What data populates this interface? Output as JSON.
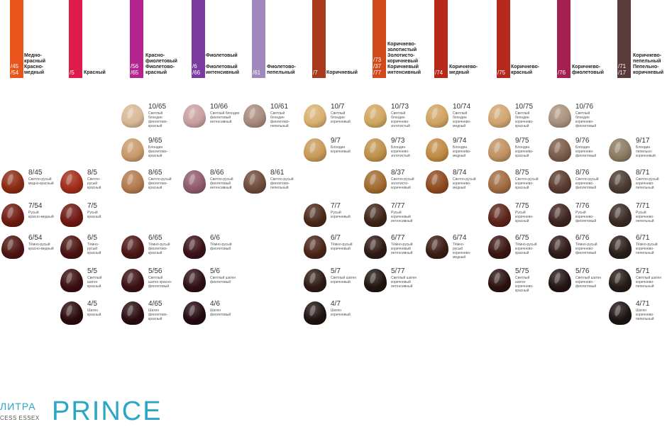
{
  "columns": [
    {
      "code": "/45\n/54",
      "label": "Медно-\nкрасный\nКрасно-\nмедный",
      "color": "#e8541a"
    },
    {
      "code": "/5",
      "label": "Красный",
      "color": "#e01a4a"
    },
    {
      "code": "/56\n/65",
      "label": "Красно-\nфиолетовый\nФиолетово-\nкрасный",
      "color": "#b3248e"
    },
    {
      "code": "/6\n/66",
      "label": "Фиолетовый\n\nФиолетовый\nинтенсивный",
      "color": "#7a3aa0"
    },
    {
      "code": "/61",
      "label": "Фиолетово-\nпепельный",
      "color": "#a088bd"
    },
    {
      "code": "/7",
      "label": "Коричневый",
      "color": "#a8391a"
    },
    {
      "code": "/73\n/37\n/77",
      "label": "Коричнево-\nзолотистый\nЗолотисто-\nкоричневый\nКоричневый\nинтенсивный",
      "color": "#d24a1c"
    },
    {
      "code": "/74",
      "label": "Коричнево-\nмедный",
      "color": "#b82818"
    },
    {
      "code": "/75",
      "label": "Коричнево-\nкрасный",
      "color": "#b5291c"
    },
    {
      "code": "/76",
      "label": "Коричнево-\nфиолетовый",
      "color": "#a52050"
    },
    {
      "code": "/71\n/17",
      "label": "Коричнево-\nпепельный\nПепельно-\nкоричневый",
      "color": "#5a3a3a"
    }
  ],
  "shades": [
    {
      "code": "8/45",
      "name": "Светло-русый\nмедно-красный",
      "color": "#8a2a12"
    },
    {
      "code": "7/54",
      "name": "Русый\nкрасно-медный",
      "color": "#6e1a10"
    },
    {
      "code": "6/54",
      "name": "Тёмно-русый\nкрасно-медный",
      "color": "#4e1410"
    },
    {
      "code": "8/5",
      "name": "Светло-\nрусый\nкрасный",
      "color": "#a02c18"
    },
    {
      "code": "7/5",
      "name": "Русый\nкрасный",
      "color": "#6e1812"
    },
    {
      "code": "6/5",
      "name": "Тёмно-\nрусый\nкрасный",
      "color": "#4a1210"
    },
    {
      "code": "5/5",
      "name": "Светлый\nшатен\nкрасный",
      "color": "#3a0e10"
    },
    {
      "code": "4/5",
      "name": "Шатен\nкрасный",
      "color": "#2a0a0c"
    },
    {
      "code": "10/65",
      "name": "Светлый\nблондин\nфиолетово-\nкрасный",
      "color": "#d8b896"
    },
    {
      "code": "9/65",
      "name": "Блондин\nфиолетово-\nкрасный",
      "color": "#c89a6a"
    },
    {
      "code": "8/65",
      "name": "Светло-русый\nфиолетово-\nкрасный",
      "color": "#b07a4e"
    },
    {
      "code": "6/65",
      "name": "Тёмно-русый\nфиолетово-\nкрасный",
      "color": "#4a1614"
    },
    {
      "code": "5/56",
      "name": "Светлый\nшатен красно-\nфиолетовый",
      "color": "#3a1014"
    },
    {
      "code": "4/65",
      "name": "Шатен\nфиолетово-\nкрасный",
      "color": "#2a0c10"
    },
    {
      "code": "10/66",
      "name": "Светлый блондин\nфиолетовый\nинтенсивный",
      "color": "#c8a0a0"
    },
    {
      "code": "8/66",
      "name": "Светло-русый\nфиолетовый\nинтенсивный",
      "color": "#8e5a6a"
    },
    {
      "code": "6/6",
      "name": "Тёмно-русый\nфиолетовый",
      "color": "#3a1218"
    },
    {
      "code": "5/6",
      "name": "Светлый шатен\nфиолетовый",
      "color": "#2e0e14"
    },
    {
      "code": "4/6",
      "name": "Шатен\nфиолетовый",
      "color": "#240a10"
    },
    {
      "code": "10/61",
      "name": "Светлый\nблондин\nфиолетово-\nпепельный",
      "color": "#a88a7c"
    },
    {
      "code": "8/61",
      "name": "Светло-русый\nфиолетово-\nпепельный",
      "color": "#6e4a3a"
    },
    {
      "code": "10/7",
      "name": "Светлый\nблондин\nкоричневый",
      "color": "#d8b070"
    },
    {
      "code": "9/7",
      "name": "Блондин\nкоричневый",
      "color": "#c89a58"
    },
    {
      "code": "7/7",
      "name": "Русый\nкоричневый",
      "color": "#4a2a1a"
    },
    {
      "code": "6/7",
      "name": "Тёмно-русый\nкоричневый",
      "color": "#4a2418"
    },
    {
      "code": "5/7",
      "name": "Светлый шатен\nкоричневый",
      "color": "#2e1a14"
    },
    {
      "code": "4/7",
      "name": "Шатен\nкоричневый",
      "color": "#1e1210"
    },
    {
      "code": "10/73",
      "name": "Светлый\nблондин\nкоричнево-\nзолотистый",
      "color": "#d0a660"
    },
    {
      "code": "9/73",
      "name": "Блондин\nкоричнево-\nзолотистый",
      "color": "#c0904a"
    },
    {
      "code": "8/37",
      "name": "Светло-русый\nзолотисто-\nкоричневый",
      "color": "#a06a2e"
    },
    {
      "code": "7/77",
      "name": "Русый\nкоричневый\nинтенсивный",
      "color": "#3e2418"
    },
    {
      "code": "6/77",
      "name": "Тёмно-русый\nкоричневый\nинтенсивный",
      "color": "#2e1a14"
    },
    {
      "code": "5/77",
      "name": "Светлый шатен\nкоричневый\nинтенсивный",
      "color": "#20140e"
    },
    {
      "code": "10/74",
      "name": "Светлый\nблондин\nкоричнево-\nмедный",
      "color": "#d0a460"
    },
    {
      "code": "9/74",
      "name": "Блондин\nкоричнево-\nмедный",
      "color": "#c08a44"
    },
    {
      "code": "8/74",
      "name": "Светло-русый\nкоричнево-\nмедный",
      "color": "#8e4a1e"
    },
    {
      "code": "6/74",
      "name": "Тёмно-\nрусый\nкоричнево-\nмедный",
      "color": "#3a1c12"
    },
    {
      "code": "10/75",
      "name": "Светлый\nблондин\nкоричнево-\nкрасный",
      "color": "#d0a470"
    },
    {
      "code": "9/75",
      "name": "Блондин\nкоричнево-\nкрасный",
      "color": "#c09060"
    },
    {
      "code": "8/75",
      "name": "Светло-русый\nкоричнево-\nкрасный",
      "color": "#a06a40"
    },
    {
      "code": "7/75",
      "name": "Русый\nкоричнево-\nкрасный",
      "color": "#5a2418"
    },
    {
      "code": "6/75",
      "name": "Тёмно-русый\nкоричнево-\nкрасный",
      "color": "#3a1612"
    },
    {
      "code": "5/75",
      "name": "Светлый\nшатен\nкоричнево-\nкрасный",
      "color": "#2a1210"
    },
    {
      "code": "10/76",
      "name": "Светлый\nблондин\nкоричнево-\nфиолетовый",
      "color": "#a8907c"
    },
    {
      "code": "9/76",
      "name": "Блондин\nкоричнево-\nфиолетовый",
      "color": "#7a5a48"
    },
    {
      "code": "8/76",
      "name": "Светло-русый\nкоричнево-\nфиолетовый",
      "color": "#5a3a2e"
    },
    {
      "code": "7/76",
      "name": "Русый\nкоричнево-\nфиолетовый",
      "color": "#3e2420"
    },
    {
      "code": "6/76",
      "name": "Тёмно-русый\nкоричнево-\nфиолетовый",
      "color": "#2e1a18"
    },
    {
      "code": "5/76",
      "name": "Светлый шатен\nкоричнево-\nфиолетовый",
      "color": "#241414"
    },
    {
      "code": "9/17",
      "name": "Блондин\nпепельно-\nкоричневый",
      "color": "#8a7a62"
    },
    {
      "code": "8/71",
      "name": "Светло-русый\nкоричнево-\nпепельный",
      "color": "#4a3a30"
    },
    {
      "code": "7/71",
      "name": "Русый\nкоричнево-\nпепельный",
      "color": "#3a2a24"
    },
    {
      "code": "6/71",
      "name": "Тёмно-русый\nкоричнево-\nпепельный",
      "color": "#2a1e1a"
    },
    {
      "code": "5/71",
      "name": "Светлый шатен\nкоричнево-\nпепельный",
      "color": "#241a16"
    },
    {
      "code": "4/71",
      "name": "Шатен\nкоричнево-\nпепельный",
      "color": "#1c1412"
    }
  ],
  "branding": {
    "left_title": "ЛИТРА",
    "left_sub": "CESS ESSEX",
    "main": "PRINCE",
    "accent_color": "#2aa6c7"
  }
}
